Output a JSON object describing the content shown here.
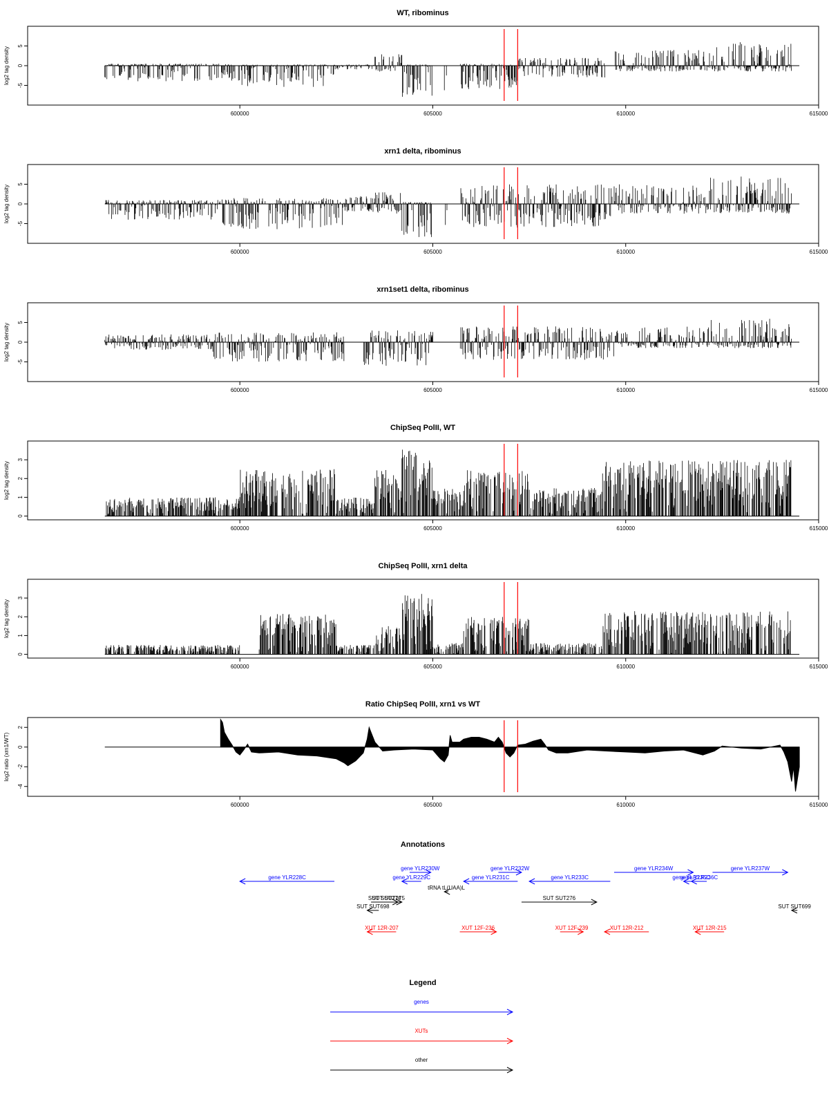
{
  "chart_data": [
    {
      "type": "bar",
      "title": "WT, ribominus",
      "ylabel": "log2 tag density",
      "xlim": [
        594500,
        615000
      ],
      "ylim": [
        -10,
        10
      ],
      "xticks": [
        600000,
        605000,
        610000,
        615000
      ],
      "yticks": [
        -5,
        0,
        5
      ],
      "vlines": [
        606850,
        607200
      ],
      "density_profile": [
        {
          "x": [
            596500,
            600000
          ],
          "pos": 0.5,
          "neg": -4
        },
        {
          "x": [
            600000,
            602500
          ],
          "pos": 0.3,
          "neg": -5.5
        },
        {
          "x": [
            602500,
            603500
          ],
          "pos": 0.3,
          "neg": -1
        },
        {
          "x": [
            603500,
            604200
          ],
          "pos": 3,
          "neg": -1.5
        },
        {
          "x": [
            604200,
            605000
          ],
          "pos": 0.3,
          "neg": -8
        },
        {
          "x": [
            605300,
            605400
          ],
          "pos": 0,
          "neg": -6.5
        },
        {
          "x": [
            605700,
            607200
          ],
          "pos": 0.5,
          "neg": -6
        },
        {
          "x": [
            607200,
            609500
          ],
          "pos": 2,
          "neg": -3
        },
        {
          "x": [
            609700,
            612200
          ],
          "pos": 4,
          "neg": -1.5
        },
        {
          "x": [
            612200,
            614300
          ],
          "pos": 6,
          "neg": -1.5
        }
      ]
    },
    {
      "type": "bar",
      "title": "xrn1 delta, ribominus",
      "ylabel": "log2 tag density",
      "xlim": [
        594500,
        615000
      ],
      "ylim": [
        -10,
        10
      ],
      "xticks": [
        600000,
        605000,
        610000,
        615000
      ],
      "yticks": [
        -5,
        0,
        5
      ],
      "vlines": [
        606850,
        607200
      ],
      "density_profile": [
        {
          "x": [
            596500,
            599500
          ],
          "pos": 1,
          "neg": -4
        },
        {
          "x": [
            599500,
            602700
          ],
          "pos": 1.5,
          "neg": -6.5
        },
        {
          "x": [
            602700,
            603500
          ],
          "pos": 2,
          "neg": -2
        },
        {
          "x": [
            603500,
            604200
          ],
          "pos": 3,
          "neg": -2.5
        },
        {
          "x": [
            604200,
            605000
          ],
          "pos": 0.5,
          "neg": -8.5
        },
        {
          "x": [
            605300,
            605400
          ],
          "pos": 0,
          "neg": -6
        },
        {
          "x": [
            605700,
            609700
          ],
          "pos": 5,
          "neg": -6
        },
        {
          "x": [
            609700,
            612200
          ],
          "pos": 5,
          "neg": -2.5
        },
        {
          "x": [
            612200,
            614300
          ],
          "pos": 7,
          "neg": -2.5
        }
      ]
    },
    {
      "type": "bar",
      "title": "xrn1set1 delta, ribominus",
      "ylabel": "log2 tag density",
      "xlim": [
        594500,
        615000
      ],
      "ylim": [
        -10,
        10
      ],
      "xticks": [
        600000,
        605000,
        610000,
        615000
      ],
      "yticks": [
        -5,
        0,
        5
      ],
      "vlines": [
        606850,
        607200
      ],
      "density_profile": [
        {
          "x": [
            596500,
            599300
          ],
          "pos": 2,
          "neg": -2
        },
        {
          "x": [
            599300,
            602700
          ],
          "pos": 2.5,
          "neg": -5
        },
        {
          "x": [
            603200,
            605000
          ],
          "pos": 3,
          "neg": -6
        },
        {
          "x": [
            605700,
            609700
          ],
          "pos": 4,
          "neg": -4.5
        },
        {
          "x": [
            609700,
            612200
          ],
          "pos": 4,
          "neg": -1.5
        },
        {
          "x": [
            612200,
            614300
          ],
          "pos": 6,
          "neg": -1.5
        }
      ]
    },
    {
      "type": "bar",
      "title": "ChipSeq PolII, WT",
      "ylabel": "log2 tag density",
      "xlim": [
        594500,
        615000
      ],
      "ylim": [
        -0.2,
        4
      ],
      "xticks": [
        600000,
        605000,
        610000,
        615000
      ],
      "yticks": [
        0,
        1,
        2,
        3
      ],
      "vlines": [
        606850,
        607200
      ],
      "density_profile": [
        {
          "x": [
            596500,
            600000
          ],
          "max": 1
        },
        {
          "x": [
            600000,
            602500
          ],
          "max": 2.5
        },
        {
          "x": [
            602500,
            603500
          ],
          "max": 1
        },
        {
          "x": [
            603500,
            604200
          ],
          "max": 2.5
        },
        {
          "x": [
            604200,
            605000
          ],
          "max": 3.6
        },
        {
          "x": [
            605000,
            605800
          ],
          "max": 1.5
        },
        {
          "x": [
            605800,
            607500
          ],
          "max": 2.5
        },
        {
          "x": [
            607500,
            609400
          ],
          "max": 1.5
        },
        {
          "x": [
            609400,
            612200
          ],
          "max": 3
        },
        {
          "x": [
            612200,
            614300
          ],
          "max": 3
        }
      ]
    },
    {
      "type": "bar",
      "title": "ChipSeq PolII, xrn1 delta",
      "ylabel": "log2 tag density",
      "xlim": [
        594500,
        615000
      ],
      "ylim": [
        -0.2,
        4
      ],
      "xticks": [
        600000,
        605000,
        610000,
        615000
      ],
      "yticks": [
        0,
        1,
        2,
        3
      ],
      "vlines": [
        606850,
        607200
      ],
      "density_profile": [
        {
          "x": [
            596500,
            600000
          ],
          "max": 0.5
        },
        {
          "x": [
            600500,
            602500
          ],
          "max": 2.2
        },
        {
          "x": [
            602500,
            603500
          ],
          "max": 0.5
        },
        {
          "x": [
            603500,
            604200
          ],
          "max": 1.5
        },
        {
          "x": [
            604200,
            605000
          ],
          "max": 3.3
        },
        {
          "x": [
            605000,
            605800
          ],
          "max": 0.6
        },
        {
          "x": [
            605800,
            607500
          ],
          "max": 2
        },
        {
          "x": [
            607500,
            609400
          ],
          "max": 0.6
        },
        {
          "x": [
            609400,
            612200
          ],
          "max": 2.3
        },
        {
          "x": [
            612200,
            614300
          ],
          "max": 2.3
        }
      ]
    },
    {
      "type": "area",
      "title": "Ratio ChipSeq PolII, xrn1 vs WT",
      "ylabel": "log2 ratio (xrn1/WT)",
      "xlim": [
        594500,
        615000
      ],
      "ylim": [
        -5,
        3
      ],
      "xticks": [
        600000,
        605000,
        610000,
        615000
      ],
      "yticks": [
        -4,
        -2,
        0,
        2
      ],
      "vlines": [
        606850,
        607200
      ],
      "x": [
        599500,
        599550,
        599600,
        599700,
        599800,
        599900,
        600000,
        600100,
        600200,
        600300,
        600500,
        601000,
        601500,
        602000,
        602500,
        602700,
        602800,
        603000,
        603200,
        603300,
        603350,
        603400,
        603500,
        603700,
        604000,
        604500,
        605000,
        605200,
        605300,
        605400,
        605450,
        605500,
        605700,
        605800,
        606000,
        606200,
        606400,
        606600,
        606700,
        606800,
        606900,
        607000,
        607100,
        607200,
        607400,
        607600,
        607800,
        607900,
        608000,
        608200,
        608500,
        609000,
        609500,
        610000,
        610500,
        611000,
        611500,
        612000,
        612300,
        612500,
        613000,
        613500,
        614000,
        614100,
        614200,
        614250,
        614300,
        614350,
        614400,
        614500
      ],
      "y": [
        2.8,
        2.5,
        1.5,
        0.8,
        0.2,
        -0.5,
        -0.8,
        -0.3,
        0.3,
        -0.5,
        -0.6,
        -0.5,
        -0.8,
        -0.9,
        -1.2,
        -1.6,
        -1.9,
        -1.4,
        -0.6,
        0.8,
        2,
        1.5,
        0.5,
        -0.4,
        -0.3,
        -0.2,
        -0.3,
        -1.2,
        -1.5,
        -0.8,
        1.2,
        0.5,
        0.5,
        0.8,
        1,
        1,
        0.8,
        0.5,
        1,
        0.5,
        -0.6,
        -1,
        -0.6,
        0.2,
        0.3,
        0.6,
        0.8,
        0.3,
        -0.3,
        -0.6,
        -0.6,
        -0.3,
        -0.4,
        -0.5,
        -0.6,
        -0.4,
        -0.3,
        -0.8,
        -0.4,
        0.1,
        -0.1,
        -0.2,
        0.2,
        -0.5,
        -1.5,
        -2.5,
        -3.5,
        -2,
        -4.5,
        -2
      ]
    }
  ],
  "annotations": {
    "title": "Annotations",
    "features": [
      {
        "label": "gene YLR228C",
        "start": 600000,
        "end": 602450,
        "strand": "-",
        "color": "#0000ff",
        "row": 1
      },
      {
        "label": "gene YLR229C",
        "start": 604200,
        "end": 604700,
        "strand": "-",
        "color": "#0000ff",
        "row": 1
      },
      {
        "label": "gene YLR230W",
        "start": 604400,
        "end": 604950,
        "strand": "+",
        "color": "#0000ff",
        "row": 0
      },
      {
        "label": "gene YLR231C",
        "start": 605800,
        "end": 607200,
        "strand": "-",
        "color": "#0000ff",
        "row": 1
      },
      {
        "label": "gene YLR232W",
        "start": 606700,
        "end": 607300,
        "strand": "+",
        "color": "#0000ff",
        "row": 0
      },
      {
        "label": "gene YLR233C",
        "start": 607500,
        "end": 609600,
        "strand": "-",
        "color": "#0000ff",
        "row": 1
      },
      {
        "label": "gene YLR234W",
        "start": 609700,
        "end": 611750,
        "strand": "+",
        "color": "#0000ff",
        "row": 0
      },
      {
        "label": "gene YLR235C",
        "start": 611500,
        "end": 611900,
        "strand": "-",
        "color": "#0000ff",
        "row": 1
      },
      {
        "label": "gene YLR236C",
        "start": 611700,
        "end": 612100,
        "strand": "-",
        "color": "#0000ff",
        "row": 1
      },
      {
        "label": "gene YLR237W",
        "start": 612250,
        "end": 614200,
        "strand": "+",
        "color": "#0000ff",
        "row": 0
      },
      {
        "label": "tRNA tL(UAA)L",
        "start": 605300,
        "end": 605400,
        "strand": "-",
        "color": "#000000",
        "row": 2
      },
      {
        "label": "SUT SUT274",
        "start": 603400,
        "end": 604100,
        "strand": "+",
        "color": "#000000",
        "row": 3
      },
      {
        "label": "SUT SUT275",
        "start": 603500,
        "end": 604200,
        "strand": "+",
        "color": "#000000",
        "row": 3
      },
      {
        "label": "SUT SUT698",
        "start": 603300,
        "end": 603600,
        "strand": "-",
        "color": "#000000",
        "row": 4
      },
      {
        "label": "SUT SUT276",
        "start": 607300,
        "end": 609250,
        "strand": "+",
        "color": "#000000",
        "row": 3
      },
      {
        "label": "SUT SUT699",
        "start": 614300,
        "end": 614450,
        "strand": "-",
        "color": "#000000",
        "row": 4
      },
      {
        "label": "XUT 12R-207",
        "start": 603300,
        "end": 604050,
        "strand": "-",
        "color": "#ff0000",
        "row": 5
      },
      {
        "label": "XUT 12F-236",
        "start": 605700,
        "end": 606650,
        "strand": "+",
        "color": "#ff0000",
        "row": 5
      },
      {
        "label": "XUT 12F-239",
        "start": 608300,
        "end": 608900,
        "strand": "+",
        "color": "#ff0000",
        "row": 5
      },
      {
        "label": "XUT 12R-212",
        "start": 609450,
        "end": 610600,
        "strand": "-",
        "color": "#ff0000",
        "row": 5
      },
      {
        "label": "XUT 12R-215",
        "start": 611800,
        "end": 612550,
        "strand": "-",
        "color": "#ff0000",
        "row": 5
      }
    ]
  },
  "legend": {
    "title": "Legend",
    "entries": [
      {
        "label": "genes",
        "color": "#0000ff"
      },
      {
        "label": "XUTs",
        "color": "#ff0000"
      },
      {
        "label": "other",
        "color": "#000000"
      }
    ]
  }
}
